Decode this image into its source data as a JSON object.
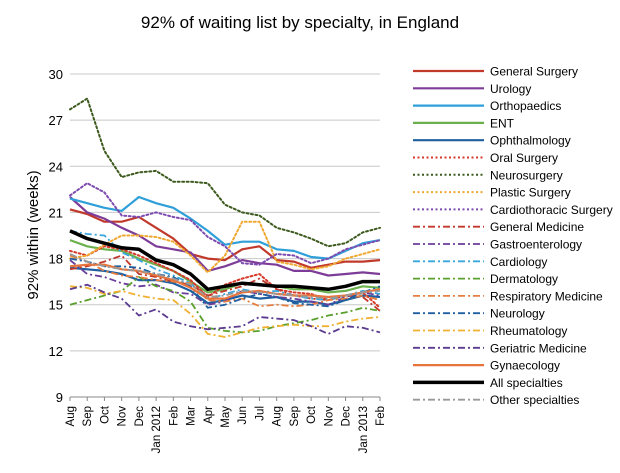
{
  "chart_data": {
    "type": "line",
    "title": "92% of waiting list by specialty, in England",
    "ylabel": "92% within (weeks)",
    "xlabel": "",
    "ylim": [
      9,
      30
    ],
    "yticks": [
      9,
      12,
      15,
      18,
      21,
      24,
      27,
      30
    ],
    "grid": "horizontal",
    "legend": "right",
    "categories": [
      "Aug",
      "Sep",
      "Oct",
      "Nov",
      "Dec",
      "Jan 2012",
      "Feb",
      "Mar",
      "Apr",
      "May",
      "Jun",
      "Jul",
      "Aug",
      "Sep",
      "Oct",
      "Nov",
      "Dec",
      "Jan 2013",
      "Feb"
    ],
    "series": [
      {
        "name": "General Surgery",
        "color": "#c0392b",
        "dash": "solid",
        "width": 2.2,
        "values": [
          21.2,
          20.9,
          20.4,
          20.4,
          20.7,
          20.0,
          19.3,
          18.3,
          18.0,
          17.9,
          18.6,
          18.8,
          17.9,
          17.8,
          17.4,
          17.6,
          17.8,
          17.8,
          17.9
        ]
      },
      {
        "name": "Urology",
        "color": "#7d3c98",
        "dash": "solid",
        "width": 2.2,
        "values": [
          22.0,
          21.0,
          20.6,
          20.0,
          19.5,
          18.8,
          18.6,
          18.4,
          17.2,
          17.5,
          17.9,
          17.7,
          17.6,
          17.2,
          17.2,
          16.9,
          17.0,
          17.1,
          17.0
        ]
      },
      {
        "name": "Orthopaedics",
        "color": "#2e9fd8",
        "dash": "solid",
        "width": 2.2,
        "values": [
          21.9,
          21.6,
          21.3,
          21.1,
          22.0,
          21.6,
          21.3,
          20.6,
          19.8,
          18.9,
          19.1,
          19.1,
          18.6,
          18.5,
          18.1,
          18.0,
          18.5,
          19.0,
          19.2
        ]
      },
      {
        "name": "ENT",
        "color": "#6ab04c",
        "dash": "solid",
        "width": 2.2,
        "values": [
          19.2,
          18.8,
          18.6,
          18.5,
          18.0,
          17.6,
          17.2,
          16.5,
          15.8,
          16.0,
          16.4,
          16.3,
          16.2,
          16.0,
          16.0,
          15.8,
          15.9,
          16.2,
          16.1
        ]
      },
      {
        "name": "Ophthalmology",
        "color": "#1f5f9f",
        "dash": "solid",
        "width": 2.2,
        "values": [
          17.4,
          17.3,
          17.2,
          17.0,
          16.6,
          16.6,
          16.4,
          15.9,
          15.1,
          15.3,
          15.6,
          15.4,
          15.5,
          15.2,
          15.2,
          15.0,
          15.3,
          15.6,
          15.5
        ]
      },
      {
        "name": "Oral Surgery",
        "color": "#d63a2a",
        "dash": "dot",
        "width": 2,
        "values": [
          18.5,
          18.2,
          18.8,
          18.6,
          18.2,
          17.7,
          17.2,
          16.6,
          15.5,
          16.3,
          16.7,
          17.0,
          16.0,
          15.8,
          15.7,
          15.3,
          15.6,
          15.8,
          14.8
        ]
      },
      {
        "name": "Neurosurgery",
        "color": "#3d5a1e",
        "dash": "dot",
        "width": 2,
        "values": [
          27.7,
          28.4,
          25.0,
          23.3,
          23.6,
          23.7,
          23.0,
          23.0,
          22.9,
          21.5,
          21.0,
          20.8,
          20.0,
          19.7,
          19.3,
          18.8,
          19.0,
          19.7,
          20.0
        ]
      },
      {
        "name": "Plastic Surgery",
        "color": "#f0a830",
        "dash": "dot",
        "width": 2,
        "values": [
          18.0,
          18.2,
          18.9,
          19.5,
          19.5,
          19.4,
          19.1,
          18.2,
          17.1,
          18.2,
          20.4,
          20.4,
          17.8,
          17.6,
          17.3,
          17.5,
          18.0,
          18.3,
          18.6
        ]
      },
      {
        "name": "Cardiothoracic Surgery",
        "color": "#7d4bb0",
        "dash": "dot",
        "width": 2,
        "values": [
          22.1,
          22.9,
          22.3,
          20.8,
          20.7,
          21.0,
          20.7,
          20.5,
          19.4,
          18.8,
          17.7,
          17.6,
          18.3,
          18.2,
          17.7,
          18.0,
          18.6,
          18.9,
          19.2
        ]
      },
      {
        "name": "General Medicine",
        "color": "#c0392b",
        "dash": "dashdot",
        "width": 1.8,
        "values": [
          17.3,
          17.5,
          17.8,
          18.2,
          17.0,
          16.8,
          16.5,
          16.3,
          15.6,
          15.9,
          16.2,
          16.7,
          16.0,
          15.6,
          15.4,
          15.3,
          15.6,
          15.5,
          14.6
        ]
      },
      {
        "name": "Gastroenterology",
        "color": "#6a3d9a",
        "dash": "dashdot",
        "width": 1.8,
        "values": [
          17.9,
          17.0,
          16.8,
          16.4,
          16.2,
          16.3,
          15.8,
          15.7,
          15.0,
          15.2,
          15.9,
          15.7,
          15.5,
          15.4,
          15.2,
          15.0,
          15.5,
          15.8,
          15.6
        ]
      },
      {
        "name": "Cardiology",
        "color": "#3aa6dd",
        "dash": "dashdot",
        "width": 1.8,
        "values": [
          19.8,
          19.6,
          19.5,
          18.4,
          17.9,
          17.3,
          16.9,
          16.4,
          15.3,
          15.7,
          16.0,
          15.8,
          15.9,
          15.6,
          15.4,
          15.3,
          15.6,
          15.9,
          15.7
        ]
      },
      {
        "name": "Dermatology",
        "color": "#5aa02c",
        "dash": "dashdot",
        "width": 1.8,
        "values": [
          15.0,
          15.3,
          15.6,
          15.9,
          16.8,
          16.2,
          15.9,
          15.2,
          13.5,
          13.3,
          13.2,
          13.3,
          13.6,
          13.8,
          14.0,
          14.3,
          14.5,
          14.8,
          14.6
        ]
      },
      {
        "name": "Respiratory Medicine",
        "color": "#e67e40",
        "dash": "dashdot",
        "width": 1.8,
        "values": [
          18.2,
          17.8,
          17.2,
          16.9,
          16.8,
          16.6,
          16.5,
          16.4,
          15.3,
          15.2,
          15.4,
          14.9,
          15.0,
          14.9,
          15.0,
          15.3,
          15.4,
          15.6,
          15.3
        ]
      },
      {
        "name": "Neurology",
        "color": "#1f5f9f",
        "dash": "dashdot",
        "width": 1.8,
        "values": [
          18.0,
          17.8,
          17.5,
          17.5,
          17.4,
          17.0,
          16.8,
          16.2,
          14.8,
          15.0,
          15.4,
          15.7,
          15.5,
          15.1,
          15.0,
          14.9,
          15.3,
          15.8,
          16.2
        ]
      },
      {
        "name": "Rheumatology",
        "color": "#f0b030",
        "dash": "dashdot",
        "width": 1.8,
        "values": [
          16.2,
          16.1,
          15.7,
          15.9,
          15.6,
          15.4,
          15.3,
          14.4,
          13.1,
          12.9,
          13.2,
          13.5,
          13.6,
          13.7,
          13.6,
          13.6,
          13.9,
          14.1,
          14.2
        ]
      },
      {
        "name": "Geriatric Medicine",
        "color": "#5b3a8f",
        "dash": "dashdot",
        "width": 1.8,
        "values": [
          16.0,
          16.3,
          15.8,
          15.4,
          14.3,
          14.7,
          13.9,
          13.6,
          13.4,
          13.5,
          13.6,
          14.2,
          14.1,
          14.0,
          13.6,
          13.1,
          13.6,
          13.5,
          13.2
        ]
      },
      {
        "name": "Gynaecology",
        "color": "#e8743b",
        "dash": "solid",
        "width": 2.2,
        "values": [
          17.5,
          17.6,
          17.6,
          17.3,
          17.2,
          16.9,
          16.6,
          16.1,
          15.4,
          15.4,
          15.8,
          15.9,
          15.7,
          15.6,
          15.6,
          15.5,
          15.6,
          15.8,
          16.0
        ]
      },
      {
        "name": "All specialties",
        "color": "#000000",
        "dash": "solid",
        "width": 3.5,
        "values": [
          19.8,
          19.3,
          19.0,
          18.7,
          18.6,
          17.9,
          17.6,
          17.0,
          16.0,
          16.2,
          16.4,
          16.3,
          16.2,
          16.2,
          16.1,
          16.0,
          16.2,
          16.5,
          16.5
        ]
      },
      {
        "name": "Other specialties",
        "color": "#999999",
        "dash": "dashdot",
        "width": 1.8,
        "values": [
          18.3,
          17.8,
          17.5,
          17.3,
          17.2,
          17.0,
          16.7,
          16.3,
          15.5,
          15.6,
          15.9,
          15.8,
          15.7,
          15.6,
          15.5,
          15.4,
          15.6,
          15.8,
          15.9
        ]
      }
    ]
  }
}
